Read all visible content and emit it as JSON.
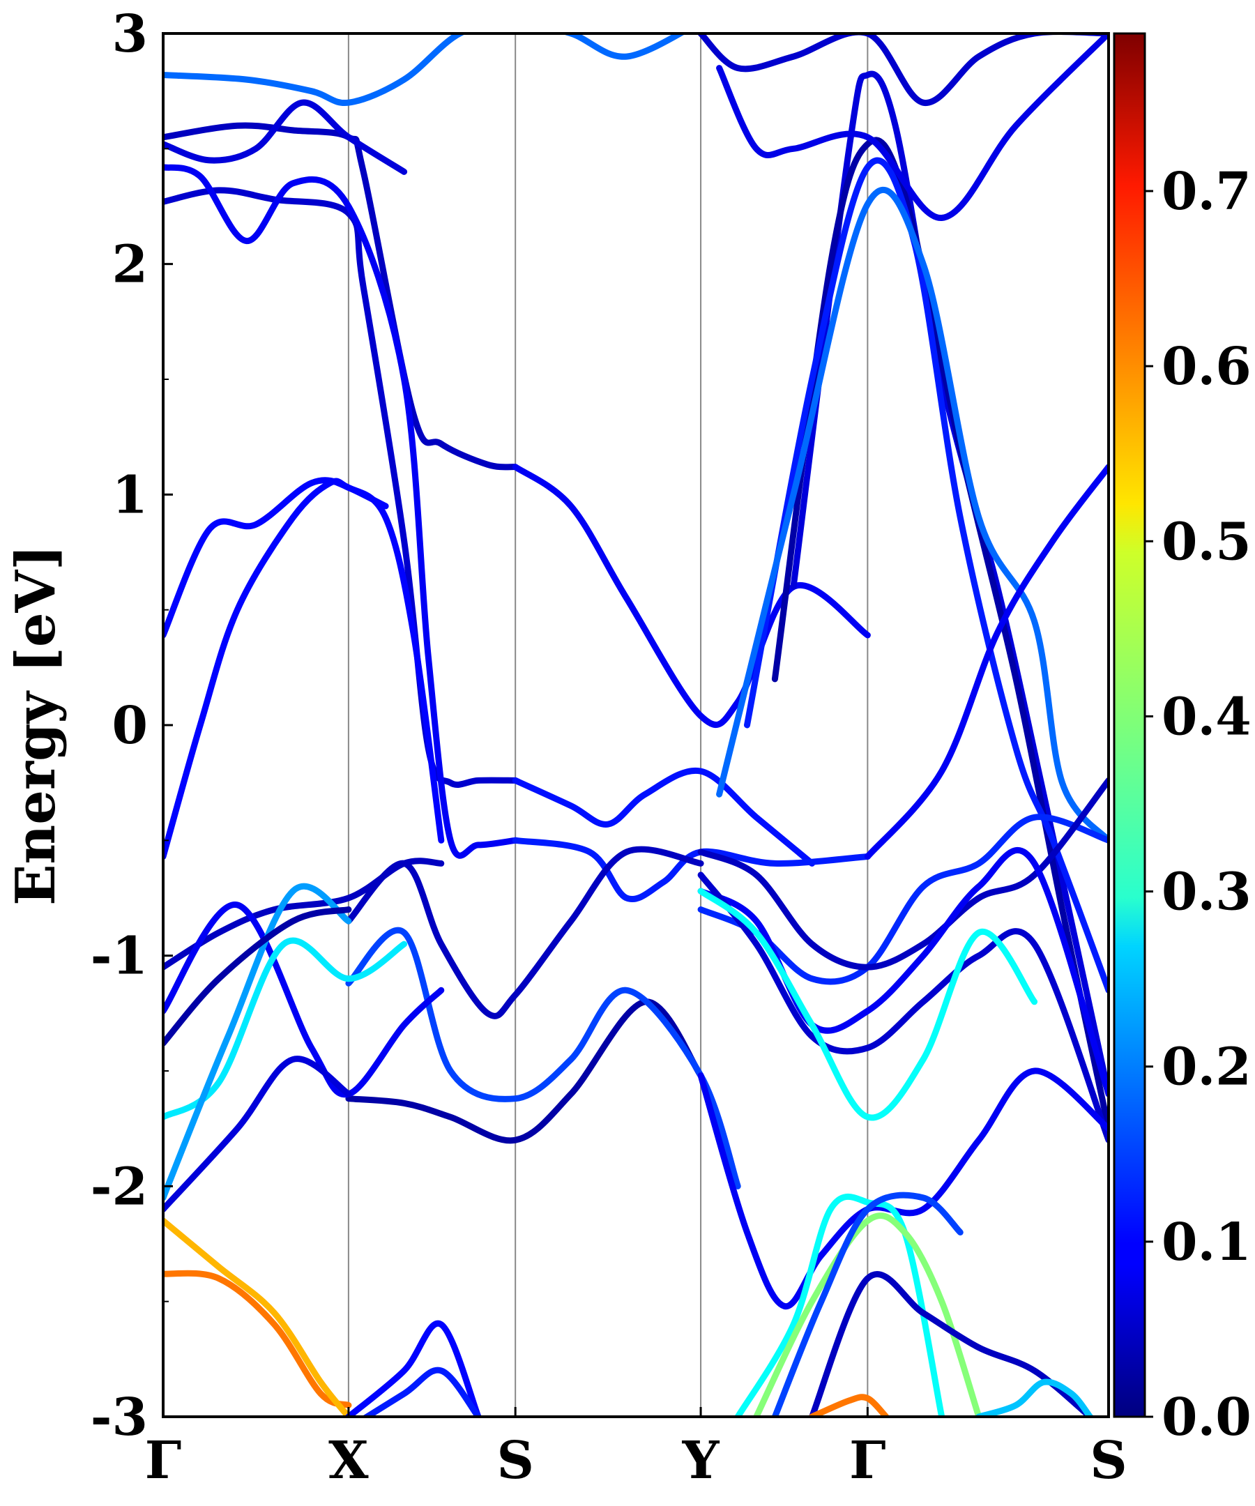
{
  "chart_data": {
    "type": "line",
    "title": "",
    "xlabel": "",
    "ylabel": "Energy [eV]",
    "ylim": [
      -3,
      3
    ],
    "yticks": [
      -3,
      -2,
      -1,
      0,
      1,
      2,
      3
    ],
    "ytick_labels": [
      "-3",
      "-2",
      "-1",
      "0",
      "1",
      "2",
      "3"
    ],
    "k_path": [
      "Γ",
      "X",
      "S",
      "Y",
      "Γ",
      "S"
    ],
    "k_positions": [
      0,
      1,
      1.9,
      2.9,
      3.8,
      5.1
    ],
    "colorbar": {
      "colormap": "jet",
      "range": [
        0.0,
        0.79
      ],
      "ticks": [
        0.0,
        0.1,
        0.2,
        0.3,
        0.4,
        0.5,
        0.6,
        0.7
      ],
      "tick_labels": [
        "0.0",
        "0.1",
        "0.2",
        "0.3",
        "0.4",
        "0.5",
        "0.6",
        "0.7"
      ]
    },
    "grid": "vertical lines at high-symmetry points",
    "series": [
      {
        "name": "band-a",
        "weight": 0.18,
        "k": [
          0.0,
          0.45,
          0.8,
          1.0,
          1.3,
          1.6,
          1.9,
          2.2,
          2.5,
          2.9
        ],
        "energy": [
          2.82,
          2.8,
          2.75,
          2.7,
          2.8,
          3.0,
          3.05,
          3.0,
          2.9,
          3.05
        ]
      },
      {
        "name": "band-b",
        "weight": 0.05,
        "k": [
          0.0,
          0.4,
          0.7,
          1.0,
          1.08,
          1.35,
          1.5,
          1.75,
          1.9
        ],
        "energy": [
          2.55,
          2.6,
          2.58,
          2.55,
          2.4,
          1.35,
          1.22,
          1.13,
          1.12
        ]
      },
      {
        "name": "band-c",
        "weight": 0.06,
        "k": [
          0.0,
          0.3,
          0.6,
          1.0,
          1.08,
          1.3,
          1.43,
          1.55,
          1.7,
          1.9
        ],
        "energy": [
          2.27,
          2.32,
          2.28,
          2.22,
          1.9,
          0.8,
          -0.1,
          -0.25,
          -0.24,
          -0.24
        ]
      },
      {
        "name": "band-d",
        "weight": 0.09,
        "k": [
          0.0,
          0.2,
          0.45,
          0.7,
          1.0,
          1.3,
          1.43,
          1.55,
          1.7,
          1.9
        ],
        "energy": [
          2.42,
          2.38,
          2.1,
          2.35,
          2.25,
          1.5,
          0.3,
          -0.5,
          -0.52,
          -0.5
        ]
      },
      {
        "name": "band-e",
        "weight": 0.07,
        "k": [
          0.0,
          0.25,
          0.5,
          0.75,
          1.0,
          1.3
        ],
        "energy": [
          2.52,
          2.45,
          2.5,
          2.7,
          2.55,
          2.4
        ]
      },
      {
        "name": "band-f",
        "weight": 0.1,
        "k": [
          0.0,
          0.25,
          0.5,
          0.8,
          1.0,
          1.2,
          1.35,
          1.5
        ],
        "energy": [
          0.39,
          0.85,
          0.87,
          1.05,
          1.03,
          0.9,
          0.4,
          -0.5
        ]
      },
      {
        "name": "band-g",
        "weight": 0.1,
        "k": [
          0.0,
          0.2,
          0.4,
          0.7,
          0.9,
          1.0,
          1.2
        ],
        "energy": [
          -0.57,
          0.0,
          0.5,
          0.9,
          1.05,
          1.03,
          0.95
        ]
      },
      {
        "name": "band-h",
        "weight": 0.09,
        "k": [
          1.9,
          2.2,
          2.5,
          2.9,
          3.1,
          3.4,
          3.8
        ],
        "energy": [
          1.12,
          0.95,
          0.55,
          0.04,
          0.1,
          0.6,
          0.39
        ]
      },
      {
        "name": "band-i",
        "weight": 0.11,
        "k": [
          1.9,
          2.2,
          2.4,
          2.6,
          2.9,
          3.2,
          3.5
        ],
        "energy": [
          -0.24,
          -0.35,
          -0.43,
          -0.3,
          -0.2,
          -0.4,
          -0.6
        ]
      },
      {
        "name": "band-j",
        "weight": 0.12,
        "k": [
          1.9,
          2.3,
          2.5,
          2.7,
          2.9,
          3.3,
          3.8
        ],
        "energy": [
          -0.5,
          -0.55,
          -0.75,
          -0.68,
          -0.55,
          -0.6,
          -0.57
        ]
      },
      {
        "name": "band-k",
        "weight": 0.03,
        "k": [
          1.0,
          1.3,
          1.55,
          1.9,
          2.2,
          2.6,
          2.9
        ],
        "energy": [
          -1.62,
          -1.64,
          -1.7,
          -1.8,
          -1.6,
          -1.2,
          -1.52
        ]
      },
      {
        "name": "band-l",
        "weight": 0.05,
        "k": [
          1.0,
          1.3,
          1.5,
          1.75,
          1.9,
          2.2,
          2.5,
          2.9
        ],
        "energy": [
          -0.85,
          -0.6,
          -0.95,
          -1.25,
          -1.17,
          -0.85,
          -0.55,
          -0.6
        ]
      },
      {
        "name": "band-m",
        "weight": 0.15,
        "k": [
          1.0,
          1.3,
          1.55,
          1.9,
          2.2,
          2.5,
          2.9,
          3.1
        ],
        "energy": [
          -1.12,
          -0.9,
          -1.5,
          -1.62,
          -1.45,
          -1.15,
          -1.52,
          -2.0
        ]
      },
      {
        "name": "band-n",
        "weight": 0.05,
        "k": [
          0.0,
          0.3,
          0.6,
          1.0,
          1.3,
          1.5
        ],
        "energy": [
          -1.05,
          -0.9,
          -0.8,
          -0.75,
          -0.6,
          -0.6
        ]
      },
      {
        "name": "band-o",
        "weight": 0.09,
        "k": [
          0.0,
          0.4,
          0.8,
          1.0,
          1.3,
          1.5
        ],
        "energy": [
          -1.24,
          -0.78,
          -1.4,
          -1.6,
          -1.3,
          -1.15
        ]
      },
      {
        "name": "band-p",
        "weight": 0.28,
        "k": [
          0.0,
          0.3,
          0.65,
          1.0,
          1.3
        ],
        "energy": [
          -1.7,
          -1.55,
          -0.95,
          -1.1,
          -0.95
        ]
      },
      {
        "name": "band-q",
        "weight": 0.22,
        "k": [
          0.0,
          0.35,
          0.7,
          1.0
        ],
        "energy": [
          -2.05,
          -1.35,
          -0.72,
          -0.85
        ]
      },
      {
        "name": "band-r",
        "weight": 0.07,
        "k": [
          0.0,
          0.4,
          0.7,
          1.0
        ],
        "energy": [
          -2.1,
          -1.75,
          -1.45,
          -1.6
        ]
      },
      {
        "name": "band-s",
        "weight": 0.03,
        "k": [
          0.0,
          0.3,
          0.7,
          1.0
        ],
        "energy": [
          -1.38,
          -1.1,
          -0.85,
          -0.8
        ]
      },
      {
        "name": "band-t",
        "weight": 0.6,
        "k": [
          0.0,
          0.3,
          0.6,
          0.85,
          1.0
        ],
        "energy": [
          -2.38,
          -2.4,
          -2.6,
          -2.9,
          -2.95
        ]
      },
      {
        "name": "band-u",
        "weight": 0.55,
        "k": [
          0.0,
          0.3,
          0.6,
          0.85,
          1.0
        ],
        "energy": [
          -2.15,
          -2.35,
          -2.55,
          -2.85,
          -3.0
        ]
      },
      {
        "name": "band-v",
        "weight": 0.1,
        "k": [
          1.0,
          1.3,
          1.5,
          1.7
        ],
        "energy": [
          -3.0,
          -2.8,
          -2.6,
          -3.0
        ]
      },
      {
        "name": "band-w",
        "weight": 0.12,
        "k": [
          1.0,
          1.3,
          1.5,
          1.7
        ],
        "energy": [
          -3.05,
          -2.9,
          -2.8,
          -3.0
        ]
      },
      {
        "name": "band-x",
        "weight": 0.07,
        "k": [
          3.4,
          3.7,
          3.8,
          3.95,
          4.2,
          4.5,
          4.75,
          5.1
        ],
        "energy": [
          0.6,
          2.5,
          2.82,
          2.6,
          1.5,
          0.6,
          -0.3,
          -1.6
        ]
      },
      {
        "name": "band-y",
        "weight": 0.03,
        "k": [
          3.3,
          3.6,
          3.8,
          4.0,
          4.3,
          4.6,
          4.85,
          5.1
        ],
        "energy": [
          0.2,
          2.0,
          2.52,
          2.3,
          1.2,
          0.2,
          -0.8,
          -1.75
        ]
      },
      {
        "name": "band-z",
        "weight": 0.12,
        "k": [
          3.15,
          3.5,
          3.8,
          4.05,
          4.3,
          4.6,
          4.8,
          5.1
        ],
        "energy": [
          0.0,
          1.5,
          2.42,
          2.1,
          0.9,
          -0.1,
          -0.5,
          -1.15
        ]
      },
      {
        "name": "band-aa",
        "weight": 0.18,
        "k": [
          3.0,
          3.4,
          3.8,
          4.1,
          4.4,
          4.7,
          4.85,
          5.1
        ],
        "energy": [
          -0.3,
          1.0,
          2.26,
          2.0,
          0.9,
          0.45,
          -0.25,
          -0.5
        ]
      },
      {
        "name": "band-ab",
        "weight": 0.09,
        "k": [
          3.8,
          4.2,
          4.5,
          4.8,
          5.1
        ],
        "energy": [
          -0.57,
          -0.2,
          0.4,
          0.8,
          1.12
        ]
      },
      {
        "name": "band-ac",
        "weight": 0.08,
        "k": [
          3.0,
          3.2,
          3.4,
          3.8,
          4.2,
          4.6,
          5.1
        ],
        "energy": [
          2.85,
          2.5,
          2.5,
          2.55,
          2.2,
          2.6,
          3.0
        ]
      },
      {
        "name": "band-ad",
        "weight": 0.06,
        "k": [
          2.9,
          3.1,
          3.4,
          3.8,
          4.1,
          4.4,
          4.7,
          5.1
        ],
        "energy": [
          3.0,
          2.85,
          2.9,
          3.0,
          2.7,
          2.9,
          3.0,
          3.0
        ]
      },
      {
        "name": "band-ae",
        "weight": 0.13,
        "k": [
          2.9,
          3.2,
          3.5,
          3.8,
          4.1,
          4.4,
          4.7,
          5.1
        ],
        "energy": [
          -0.8,
          -0.9,
          -1.1,
          -1.05,
          -0.7,
          -0.6,
          -0.4,
          -0.5
        ]
      },
      {
        "name": "band-af",
        "weight": 0.05,
        "k": [
          2.9,
          3.2,
          3.5,
          3.8,
          4.1,
          4.4,
          4.7,
          5.1
        ],
        "energy": [
          -0.55,
          -0.65,
          -0.95,
          -1.05,
          -0.95,
          -0.75,
          -0.65,
          -0.24
        ]
      },
      {
        "name": "band-ag",
        "weight": 0.09,
        "k": [
          2.9,
          3.2,
          3.5,
          3.8,
          4.1,
          4.4,
          4.7,
          5.1
        ],
        "energy": [
          -0.72,
          -0.85,
          -1.3,
          -1.24,
          -1.0,
          -0.7,
          -0.6,
          -1.6
        ]
      },
      {
        "name": "band-ah",
        "weight": 0.06,
        "k": [
          2.9,
          3.2,
          3.5,
          3.8,
          4.1,
          4.4,
          4.7,
          5.1
        ],
        "energy": [
          -0.65,
          -0.95,
          -1.35,
          -1.4,
          -1.2,
          -1.0,
          -0.95,
          -1.8
        ]
      },
      {
        "name": "band-ai",
        "weight": 0.3,
        "k": [
          2.9,
          3.2,
          3.5,
          3.8,
          4.1,
          4.4,
          4.7
        ],
        "energy": [
          -0.72,
          -0.9,
          -1.3,
          -1.7,
          -1.45,
          -0.9,
          -1.2
        ]
      },
      {
        "name": "band-aj",
        "weight": 0.09,
        "k": [
          2.9,
          3.15,
          3.35,
          3.55,
          3.8,
          4.1,
          4.4,
          4.7,
          5.1
        ],
        "energy": [
          -1.52,
          -2.2,
          -2.52,
          -2.3,
          -2.1,
          -2.1,
          -1.8,
          -1.5,
          -1.75
        ]
      },
      {
        "name": "band-ak",
        "weight": 0.3,
        "k": [
          3.1,
          3.4,
          3.6,
          3.8,
          4.0,
          4.2
        ],
        "energy": [
          -3.0,
          -2.6,
          -2.1,
          -2.07,
          -2.2,
          -3.0
        ]
      },
      {
        "name": "band-al",
        "weight": 0.4,
        "k": [
          3.2,
          3.5,
          3.8,
          4.0,
          4.2,
          4.4
        ],
        "energy": [
          -3.0,
          -2.5,
          -2.15,
          -2.2,
          -2.5,
          -3.0
        ]
      },
      {
        "name": "band-am",
        "weight": 0.05,
        "k": [
          3.5,
          3.8,
          4.1,
          4.4,
          4.7,
          5.0
        ],
        "energy": [
          -3.0,
          -2.4,
          -2.55,
          -2.7,
          -2.8,
          -3.0
        ]
      },
      {
        "name": "band-an",
        "weight": 0.25,
        "k": [
          4.4,
          4.6,
          4.75,
          4.9,
          5.0
        ],
        "energy": [
          -3.0,
          -2.95,
          -2.85,
          -2.9,
          -3.0
        ]
      },
      {
        "name": "band-ao",
        "weight": 0.15,
        "k": [
          3.3,
          3.55,
          3.8,
          4.1,
          4.3
        ],
        "energy": [
          -3.0,
          -2.5,
          -2.1,
          -2.05,
          -2.2
        ]
      },
      {
        "name": "band-ap",
        "weight": 0.6,
        "k": [
          3.5,
          3.7,
          3.8,
          3.9
        ],
        "energy": [
          -3.0,
          -2.93,
          -2.92,
          -3.0
        ]
      }
    ]
  }
}
